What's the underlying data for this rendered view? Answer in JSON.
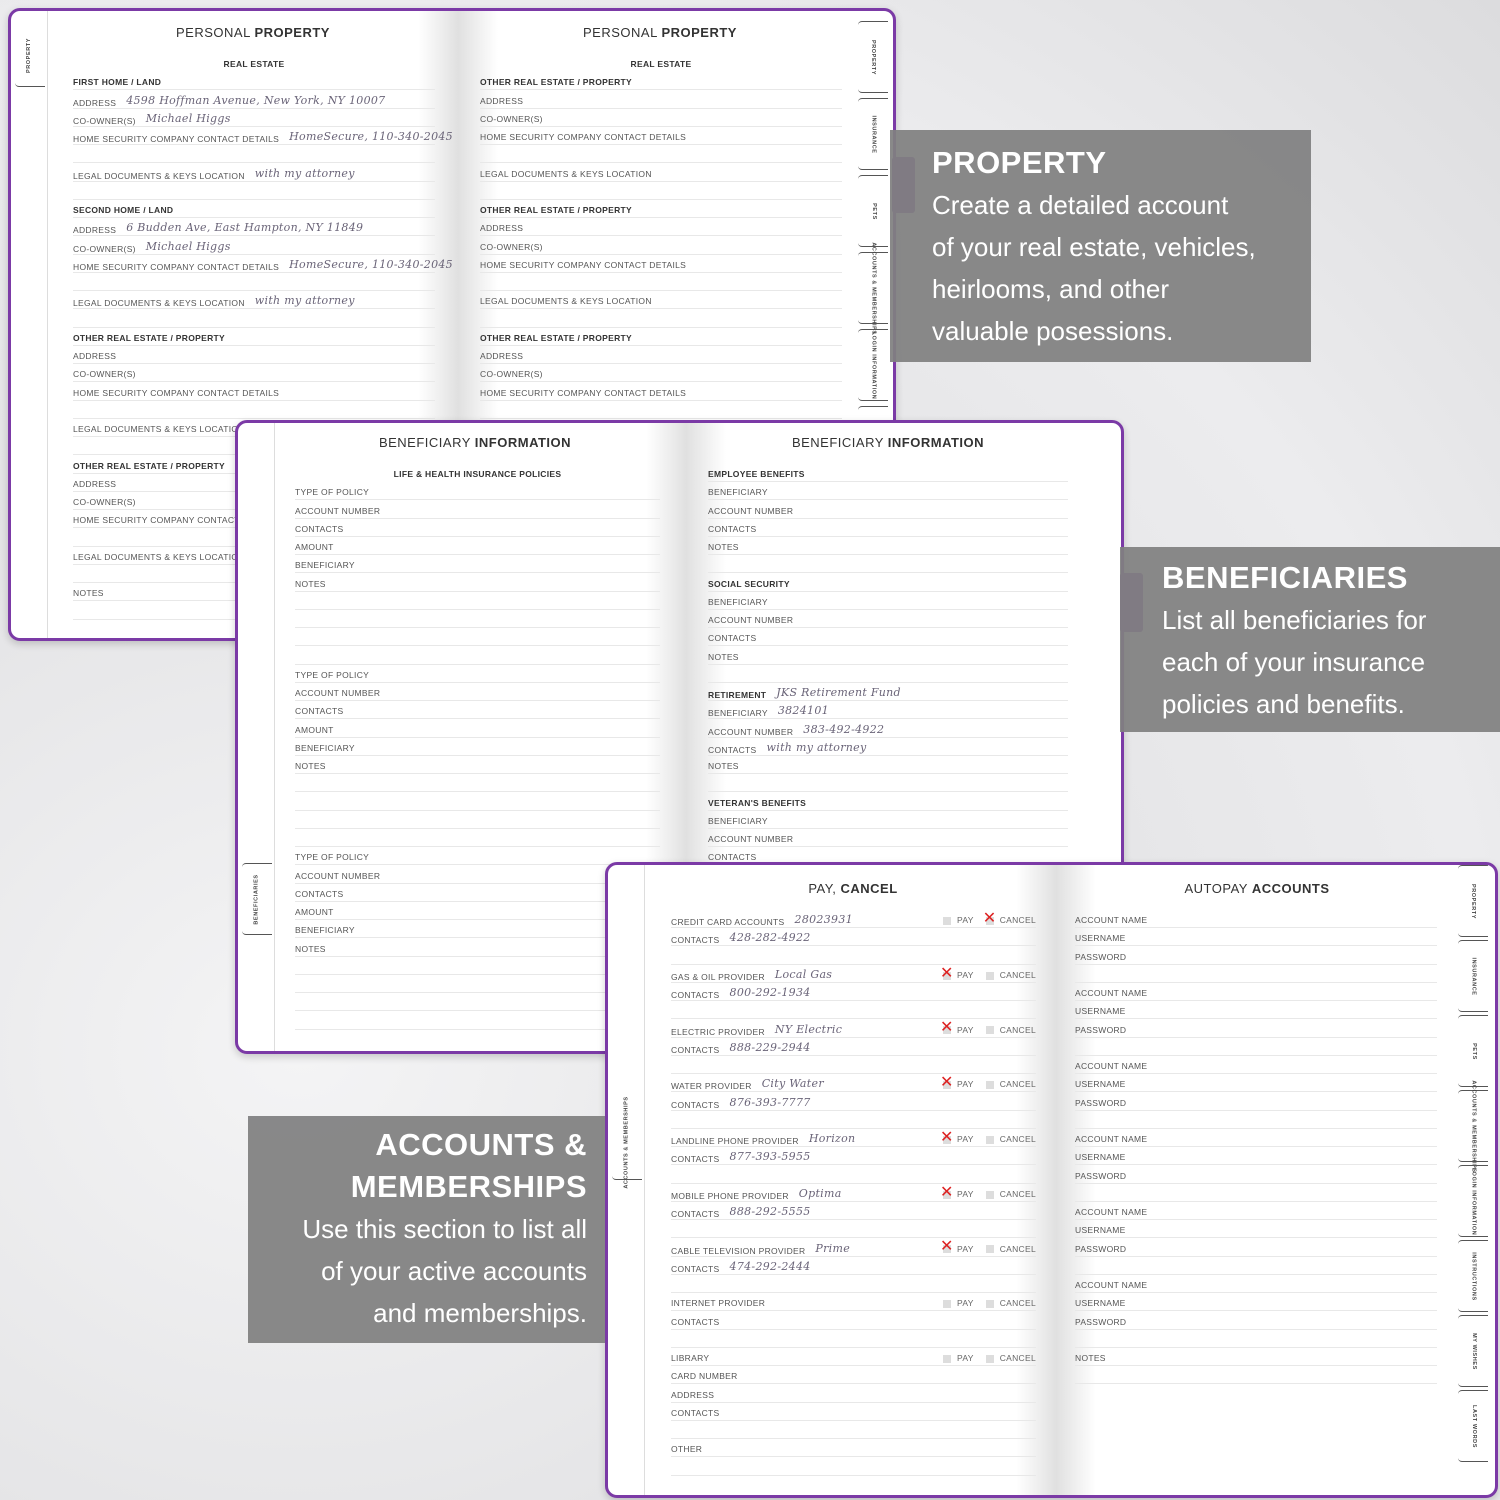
{
  "colors": {
    "cover": "#7b3aa6",
    "callout": "#808080",
    "check_mark": "#d22222"
  },
  "book1": {
    "left_tab": "PROPERTY",
    "right_tabs": [
      "PROPERTY",
      "INSURANCE",
      "PETS",
      "ACCOUNTS & MEMBERSHIPS",
      "LOGIN INFORMATION",
      "IN"
    ],
    "left": {
      "title_light": "PERSONAL",
      "title_bold": "PROPERTY",
      "section": "REAL ESTATE",
      "groups": [
        {
          "heading": "FIRST HOME / LAND",
          "fields": [
            {
              "label": "ADDRESS",
              "value": "4598 Hoffman Avenue, New York, NY 10007"
            },
            {
              "label": "CO-OWNER(S)",
              "value": "Michael Higgs"
            },
            {
              "label": "HOME SECURITY COMPANY CONTACT DETAILS",
              "value": "HomeSecure, 110-340-2045"
            },
            {
              "label": "LEGAL DOCUMENTS & KEYS LOCATION",
              "value": "with my attorney"
            }
          ]
        },
        {
          "heading": "SECOND HOME / LAND",
          "fields": [
            {
              "label": "ADDRESS",
              "value": "6 Budden Ave, East Hampton, NY 11849"
            },
            {
              "label": "CO-OWNER(S)",
              "value": "Michael Higgs"
            },
            {
              "label": "HOME SECURITY COMPANY CONTACT DETAILS",
              "value": "HomeSecure, 110-340-2045"
            },
            {
              "label": "LEGAL DOCUMENTS & KEYS LOCATION",
              "value": "with my attorney"
            }
          ]
        },
        {
          "heading": "OTHER REAL ESTATE / PROPERTY",
          "fields": [
            {
              "label": "ADDRESS"
            },
            {
              "label": "CO-OWNER(S)"
            },
            {
              "label": "HOME SECURITY COMPANY CONTACT DETAILS"
            },
            {
              "label": "LEGAL DOCUMENTS & KEYS LOCATION"
            }
          ]
        },
        {
          "heading": "OTHER REAL ESTATE / PROPERTY",
          "fields": [
            {
              "label": "ADDRESS"
            },
            {
              "label": "CO-OWNER(S)"
            },
            {
              "label": "HOME SECURITY COMPANY CONTACT DETAILS"
            },
            {
              "label": "LEGAL DOCUMENTS & KEYS LOCATION"
            }
          ]
        },
        {
          "fields": [
            {
              "label": "NOTES"
            }
          ]
        }
      ]
    },
    "right": {
      "title_light": "PERSONAL",
      "title_bold": "PROPERTY",
      "section": "REAL ESTATE",
      "groups": [
        {
          "heading": "OTHER REAL ESTATE / PROPERTY",
          "fields": [
            {
              "label": "ADDRESS"
            },
            {
              "label": "CO-OWNER(S)"
            },
            {
              "label": "HOME SECURITY COMPANY CONTACT DETAILS"
            },
            {
              "label": "LEGAL DOCUMENTS & KEYS LOCATION"
            }
          ]
        },
        {
          "heading": "OTHER REAL ESTATE / PROPERTY",
          "fields": [
            {
              "label": "ADDRESS"
            },
            {
              "label": "CO-OWNER(S)"
            },
            {
              "label": "HOME SECURITY COMPANY CONTACT DETAILS"
            },
            {
              "label": "LEGAL DOCUMENTS & KEYS LOCATION"
            }
          ]
        },
        {
          "heading": "OTHER REAL ESTATE / PROPERTY",
          "fields": [
            {
              "label": "ADDRESS"
            },
            {
              "label": "CO-OWNER(S)"
            },
            {
              "label": "HOME SECURITY COMPANY CONTACT DETAILS"
            },
            {
              "label": "LEGAL DOCUMENTS & KEYS LOCATION"
            }
          ]
        }
      ]
    }
  },
  "book2": {
    "left_tab": "BENEFICIARIES",
    "left": {
      "title_light": "BENEFICIARY",
      "title_bold": "INFORMATION",
      "section": "LIFE & HEALTH INSURANCE POLICIES",
      "groups": [
        {
          "fields": [
            {
              "label": "TYPE OF POLICY"
            },
            {
              "label": "ACCOUNT NUMBER"
            },
            {
              "label": "CONTACTS"
            },
            {
              "label": "AMOUNT"
            },
            {
              "label": "BENEFICIARY"
            },
            {
              "label": "NOTES"
            }
          ]
        },
        {
          "fields": [
            {
              "label": "TYPE OF POLICY"
            },
            {
              "label": "ACCOUNT NUMBER"
            },
            {
              "label": "CONTACTS"
            },
            {
              "label": "AMOUNT"
            },
            {
              "label": "BENEFICIARY"
            },
            {
              "label": "NOTES"
            }
          ]
        },
        {
          "fields": [
            {
              "label": "TYPE OF POLICY"
            },
            {
              "label": "ACCOUNT NUMBER"
            },
            {
              "label": "CONTACTS"
            },
            {
              "label": "AMOUNT"
            },
            {
              "label": "BENEFICIARY"
            },
            {
              "label": "NOTES"
            }
          ]
        }
      ]
    },
    "right": {
      "title_light": "BENEFICIARY",
      "title_bold": "INFORMATION",
      "groups": [
        {
          "heading": "EMPLOYEE BENEFITS",
          "fields": [
            {
              "label": "BENEFICIARY"
            },
            {
              "label": "ACCOUNT NUMBER"
            },
            {
              "label": "CONTACTS"
            },
            {
              "label": "NOTES"
            }
          ]
        },
        {
          "heading": "SOCIAL SECURITY",
          "fields": [
            {
              "label": "BENEFICIARY"
            },
            {
              "label": "ACCOUNT NUMBER"
            },
            {
              "label": "CONTACTS"
            },
            {
              "label": "NOTES"
            }
          ]
        },
        {
          "heading": "RETIREMENT",
          "heading_value": "JKS Retirement Fund",
          "fields": [
            {
              "label": "BENEFICIARY",
              "value": "3824101"
            },
            {
              "label": "ACCOUNT NUMBER",
              "value": "383-492-4922"
            },
            {
              "label": "CONTACTS",
              "value": "with my attorney"
            },
            {
              "label": "NOTES"
            }
          ]
        },
        {
          "heading": "VETERAN'S BENEFITS",
          "fields": [
            {
              "label": "BENEFICIARY"
            },
            {
              "label": "ACCOUNT NUMBER"
            },
            {
              "label": "CONTACTS"
            }
          ]
        }
      ]
    }
  },
  "book3": {
    "left_tab": "ACCOUNTS & MEMBERSHIPS",
    "right_tabs": [
      "PROPERTY",
      "INSURANCE",
      "PETS",
      "ACCOUNTS & MEMBERSHIPS",
      "LOGIN INFORMATION",
      "INSTRUCTIONS",
      "MY WISHES",
      "LAST WORDS"
    ],
    "pay_label": "PAY",
    "cancel_label": "CANCEL",
    "left": {
      "title_light": "PAY,",
      "title_bold": "CANCEL",
      "groups": [
        {
          "fields": [
            {
              "label": "CREDIT CARD ACCOUNTS",
              "value": "28023931",
              "pay": false,
              "cancel": true
            },
            {
              "label": "CONTACTS",
              "value": "428-282-4922"
            }
          ]
        },
        {
          "fields": [
            {
              "label": "GAS & OIL PROVIDER",
              "value": "Local Gas",
              "pay": true,
              "cancel": false
            },
            {
              "label": "CONTACTS",
              "value": "800-292-1934"
            }
          ]
        },
        {
          "fields": [
            {
              "label": "ELECTRIC PROVIDER",
              "value": "NY Electric",
              "pay": true,
              "cancel": false
            },
            {
              "label": "CONTACTS",
              "value": "888-229-2944"
            }
          ]
        },
        {
          "fields": [
            {
              "label": "WATER PROVIDER",
              "value": "City Water",
              "pay": true,
              "cancel": false
            },
            {
              "label": "CONTACTS",
              "value": "876-393-7777"
            }
          ]
        },
        {
          "fields": [
            {
              "label": "LANDLINE PHONE PROVIDER",
              "value": "Horizon",
              "pay": true,
              "cancel": false
            },
            {
              "label": "CONTACTS",
              "value": "877-393-5955"
            }
          ]
        },
        {
          "fields": [
            {
              "label": "MOBILE PHONE PROVIDER",
              "value": "Optima",
              "pay": true,
              "cancel": false
            },
            {
              "label": "CONTACTS",
              "value": "888-292-5555"
            }
          ]
        },
        {
          "fields": [
            {
              "label": "CABLE TELEVISION PROVIDER",
              "value": "Prime",
              "pay": true,
              "cancel": false
            },
            {
              "label": "CONTACTS",
              "value": "474-292-2444"
            }
          ]
        },
        {
          "fields": [
            {
              "label": "INTERNET PROVIDER",
              "pay": false,
              "cancel": false
            },
            {
              "label": "CONTACTS"
            }
          ]
        },
        {
          "fields": [
            {
              "label": "LIBRARY",
              "pay": false,
              "cancel": false
            },
            {
              "label": "CARD NUMBER"
            },
            {
              "label": "ADDRESS"
            },
            {
              "label": "CONTACTS"
            }
          ]
        },
        {
          "fields": [
            {
              "label": "OTHER"
            }
          ]
        }
      ]
    },
    "right": {
      "title_light": "AUTOPAY",
      "title_bold": "ACCOUNTS",
      "groups": [
        {
          "fields": [
            {
              "label": "ACCOUNT NAME"
            },
            {
              "label": "USERNAME"
            },
            {
              "label": "PASSWORD"
            }
          ]
        },
        {
          "fields": [
            {
              "label": "ACCOUNT NAME"
            },
            {
              "label": "USERNAME"
            },
            {
              "label": "PASSWORD"
            }
          ]
        },
        {
          "fields": [
            {
              "label": "ACCOUNT NAME"
            },
            {
              "label": "USERNAME"
            },
            {
              "label": "PASSWORD"
            }
          ]
        },
        {
          "fields": [
            {
              "label": "ACCOUNT NAME"
            },
            {
              "label": "USERNAME"
            },
            {
              "label": "PASSWORD"
            }
          ]
        },
        {
          "fields": [
            {
              "label": "ACCOUNT NAME"
            },
            {
              "label": "USERNAME"
            },
            {
              "label": "PASSWORD"
            }
          ]
        },
        {
          "fields": [
            {
              "label": "ACCOUNT NAME"
            },
            {
              "label": "USERNAME"
            },
            {
              "label": "PASSWORD"
            }
          ]
        },
        {
          "fields": [
            {
              "label": "NOTES"
            }
          ]
        }
      ]
    }
  },
  "callouts": {
    "property": {
      "title": "PROPERTY",
      "lines": [
        "Create a detailed account",
        "of your real estate, vehicles,",
        "heirlooms, and other",
        "valuable posessions."
      ]
    },
    "beneficiaries": {
      "title": "BENEFICIARIES",
      "lines": [
        "List all beneficiaries for",
        "each of your insurance",
        "policies and benefits."
      ]
    },
    "accounts": {
      "title_lines": [
        "ACCOUNTS &",
        "MEMBERSHIPS"
      ],
      "lines": [
        "Use this section to list all",
        "of your active accounts",
        "and memberships."
      ]
    }
  }
}
